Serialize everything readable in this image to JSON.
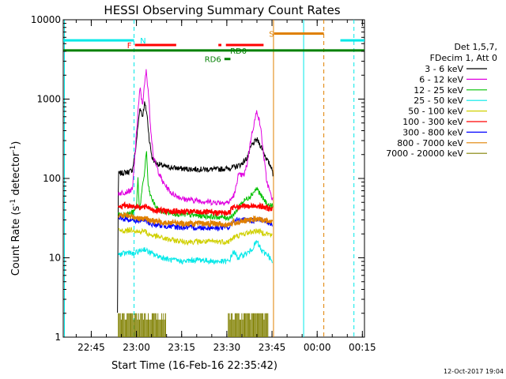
{
  "chart_data": {
    "type": "line",
    "title": "HESSI Observing Summary Count Rates",
    "xlabel": "Start Time (16-Feb-16 22:35:42)",
    "ylabel": "Count Rate (s",
    "ylabel_sup1": "-1",
    "ylabel_mid": " detector",
    "ylabel_sup2": "-1",
    "ylabel_end": ")",
    "x_unit": "minutes after 22:35:42",
    "xlim": [
      0,
      100
    ],
    "ylim": [
      1,
      10000
    ],
    "y_scale": "log",
    "x_ticks": [
      {
        "value": 9.3,
        "label": "22:45"
      },
      {
        "value": 24.3,
        "label": "23:00"
      },
      {
        "value": 39.3,
        "label": "23:15"
      },
      {
        "value": 54.3,
        "label": "23:30"
      },
      {
        "value": 69.3,
        "label": "23:45"
      },
      {
        "value": 84.3,
        "label": "00:00"
      },
      {
        "value": 99.3,
        "label": "00:15"
      }
    ],
    "y_ticks": [
      {
        "value": 1,
        "label": "1"
      },
      {
        "value": 10,
        "label": "10"
      },
      {
        "value": 100,
        "label": "100"
      },
      {
        "value": 1000,
        "label": "1000"
      },
      {
        "value": 10000,
        "label": "10000"
      }
    ],
    "legend_header": [
      "Det 1,5,7,",
      "FDecim 1, Att 0"
    ],
    "legend_position": "right",
    "series": [
      {
        "name": "3 - 6 keV",
        "color": "#000000",
        "points": [
          [
            18,
            2
          ],
          [
            18.3,
            115
          ],
          [
            20,
            118
          ],
          [
            22,
            122
          ],
          [
            23,
            130
          ],
          [
            24,
            230
          ],
          [
            24.8,
            450
          ],
          [
            25.5,
            800
          ],
          [
            26.3,
            600
          ],
          [
            27,
            900
          ],
          [
            27.8,
            650
          ],
          [
            28.6,
            300
          ],
          [
            29.5,
            180
          ],
          [
            31,
            155
          ],
          [
            34,
            140
          ],
          [
            40,
            132
          ],
          [
            50,
            130
          ],
          [
            54,
            133
          ],
          [
            57,
            140
          ],
          [
            59,
            150
          ],
          [
            61,
            180
          ],
          [
            62.5,
            260
          ],
          [
            64.3,
            310
          ],
          [
            66,
            240
          ],
          [
            67.5,
            175
          ],
          [
            68.5,
            150
          ],
          [
            69.3,
            140
          ],
          [
            69.7,
            95
          ]
        ]
      },
      {
        "name": "6 - 12 keV",
        "color": "#e000e0",
        "points": [
          [
            18.3,
            65
          ],
          [
            21,
            68
          ],
          [
            23,
            72
          ],
          [
            24,
            250
          ],
          [
            24.8,
            700
          ],
          [
            25.5,
            1380
          ],
          [
            26.3,
            850
          ],
          [
            27,
            1500
          ],
          [
            27.5,
            2300
          ],
          [
            28.2,
            1300
          ],
          [
            29,
            450
          ],
          [
            30,
            180
          ],
          [
            31,
            140
          ],
          [
            33,
            90
          ],
          [
            36,
            65
          ],
          [
            40,
            55
          ],
          [
            50,
            50
          ],
          [
            55,
            50
          ],
          [
            57,
            65
          ],
          [
            58,
            110
          ],
          [
            59,
            110
          ],
          [
            60,
            110
          ],
          [
            61,
            150
          ],
          [
            62.5,
            350
          ],
          [
            64.3,
            720
          ],
          [
            65.5,
            450
          ],
          [
            66.5,
            200
          ],
          [
            67.5,
            95
          ],
          [
            69,
            60
          ],
          [
            69.6,
            55
          ]
        ]
      },
      {
        "name": "12 - 25 keV",
        "color": "#00c000",
        "points": [
          [
            18.3,
            35
          ],
          [
            22,
            36
          ],
          [
            23.5,
            38
          ],
          [
            24.3,
            45
          ],
          [
            24.8,
            100
          ],
          [
            25.3,
            40
          ],
          [
            27,
            120
          ],
          [
            27.6,
            230
          ],
          [
            28.2,
            80
          ],
          [
            29,
            60
          ],
          [
            30,
            50
          ],
          [
            31,
            42
          ],
          [
            33,
            38
          ],
          [
            40,
            35
          ],
          [
            50,
            33
          ],
          [
            55,
            32
          ],
          [
            57,
            36
          ],
          [
            58.5,
            46
          ],
          [
            60,
            52
          ],
          [
            62,
            60
          ],
          [
            64.3,
            75
          ],
          [
            66,
            58
          ],
          [
            68,
            46
          ],
          [
            69.6,
            45
          ]
        ]
      },
      {
        "name": "25 - 50 keV",
        "color": "#00e8e8",
        "points": [
          [
            18.3,
            11
          ],
          [
            21,
            11.5
          ],
          [
            22,
            12
          ],
          [
            23,
            11
          ],
          [
            25,
            12
          ],
          [
            27,
            13
          ],
          [
            28,
            12
          ],
          [
            30,
            11
          ],
          [
            35,
            9.5
          ],
          [
            40,
            9
          ],
          [
            45,
            9.5
          ],
          [
            50,
            9
          ],
          [
            55,
            9
          ],
          [
            56.5,
            12
          ],
          [
            58,
            10
          ],
          [
            60,
            11
          ],
          [
            62,
            12
          ],
          [
            64.3,
            16
          ],
          [
            66,
            12
          ],
          [
            68,
            11
          ],
          [
            69.5,
            8.5
          ]
        ]
      },
      {
        "name": "50 - 100 keV",
        "color": "#d0d000",
        "points": [
          [
            18.3,
            22
          ],
          [
            21,
            22
          ],
          [
            23,
            23
          ],
          [
            25,
            21
          ],
          [
            27,
            22
          ],
          [
            28,
            20
          ],
          [
            30,
            19
          ],
          [
            35,
            17
          ],
          [
            40,
            16
          ],
          [
            45,
            16
          ],
          [
            50,
            16
          ],
          [
            55,
            16
          ],
          [
            56.5,
            18
          ],
          [
            58,
            19
          ],
          [
            60,
            20
          ],
          [
            62,
            21
          ],
          [
            64.3,
            22
          ],
          [
            66,
            21
          ],
          [
            68,
            20
          ],
          [
            69.5,
            19
          ]
        ]
      },
      {
        "name": "100 - 300 keV",
        "color": "#ff0000",
        "points": [
          [
            18.3,
            44
          ],
          [
            21,
            46
          ],
          [
            23,
            45
          ],
          [
            25,
            44
          ],
          [
            27,
            43
          ],
          [
            28,
            44
          ],
          [
            30,
            40
          ],
          [
            35,
            39
          ],
          [
            40,
            38
          ],
          [
            45,
            38
          ],
          [
            50,
            37
          ],
          [
            55,
            37
          ],
          [
            56.5,
            45
          ],
          [
            58,
            45
          ],
          [
            60,
            45
          ],
          [
            62,
            44
          ],
          [
            64.3,
            46
          ],
          [
            66,
            44
          ],
          [
            68,
            42
          ],
          [
            69.5,
            41
          ]
        ]
      },
      {
        "name": "300 - 800 keV",
        "color": "#0000ff",
        "points": [
          [
            18.3,
            31
          ],
          [
            21,
            31
          ],
          [
            23,
            30
          ],
          [
            25,
            29
          ],
          [
            27,
            30
          ],
          [
            28,
            28
          ],
          [
            30,
            26
          ],
          [
            35,
            25
          ],
          [
            40,
            24
          ],
          [
            45,
            24
          ],
          [
            50,
            24
          ],
          [
            55,
            24
          ],
          [
            56.5,
            29
          ],
          [
            58,
            30
          ],
          [
            60,
            30
          ],
          [
            62,
            29
          ],
          [
            64.3,
            30
          ],
          [
            66,
            30
          ],
          [
            68,
            28
          ],
          [
            69.5,
            27
          ]
        ]
      },
      {
        "name": "800 - 7000 keV",
        "color": "#e08000",
        "points": [
          [
            18.3,
            34
          ],
          [
            21,
            34
          ],
          [
            23,
            33
          ],
          [
            25,
            32
          ],
          [
            27,
            31
          ],
          [
            28,
            31
          ],
          [
            30,
            29
          ],
          [
            35,
            28
          ],
          [
            40,
            27
          ],
          [
            45,
            27
          ],
          [
            50,
            27
          ],
          [
            55,
            26
          ],
          [
            56.5,
            28
          ],
          [
            58,
            28
          ],
          [
            60,
            29
          ],
          [
            62,
            30
          ],
          [
            64.3,
            31
          ],
          [
            66,
            30
          ],
          [
            68,
            29
          ],
          [
            69.5,
            28
          ]
        ]
      },
      {
        "name": "7000 - 20000 keV",
        "color": "#808000",
        "points": []
      }
    ],
    "bursts_7000": {
      "color": "#808000",
      "ranges": [
        [
          18.3,
          34.0
        ],
        [
          54.8,
          68.0
        ]
      ],
      "level": 2
    },
    "flags": [
      {
        "label": "N",
        "color": "#00e8e8",
        "y": 5500,
        "segments": [
          [
            0,
            23.5
          ],
          [
            92,
            100
          ]
        ],
        "label_at": 25.5
      },
      {
        "label": "F",
        "color": "#ff0000",
        "y": 4800,
        "segments": [
          [
            23.8,
            37.5
          ],
          [
            51.5,
            52.5
          ],
          [
            54,
            66.5
          ]
        ],
        "label_at": 21.2
      },
      {
        "label": "S",
        "color": "#e08000",
        "y": 6700,
        "segments": [
          [
            70,
            86.5
          ]
        ],
        "label_at": 68.3
      },
      {
        "label": "RD0",
        "color": "#008000",
        "y": 4100,
        "segments": [
          [
            0,
            100
          ]
        ],
        "label_at": 55.4
      },
      {
        "label": "RD6",
        "color": "#008000",
        "y": 3200,
        "segments": [
          [
            53.5,
            55.5
          ]
        ],
        "label_at": 46.9
      }
    ],
    "vlines": [
      {
        "x": 0.4,
        "color": "#00e8e8",
        "dash": false
      },
      {
        "x": 23.5,
        "color": "#00e8e8",
        "dash": true
      },
      {
        "x": 69.8,
        "color": "#e08000",
        "dash": false
      },
      {
        "x": 79.8,
        "color": "#00e8e8",
        "dash": false
      },
      {
        "x": 86.5,
        "color": "#e08000",
        "dash": true
      },
      {
        "x": 96.5,
        "color": "#00e8e8",
        "dash": true
      }
    ]
  },
  "footer": {
    "timestamp": "12-Oct-2017 19:04"
  }
}
